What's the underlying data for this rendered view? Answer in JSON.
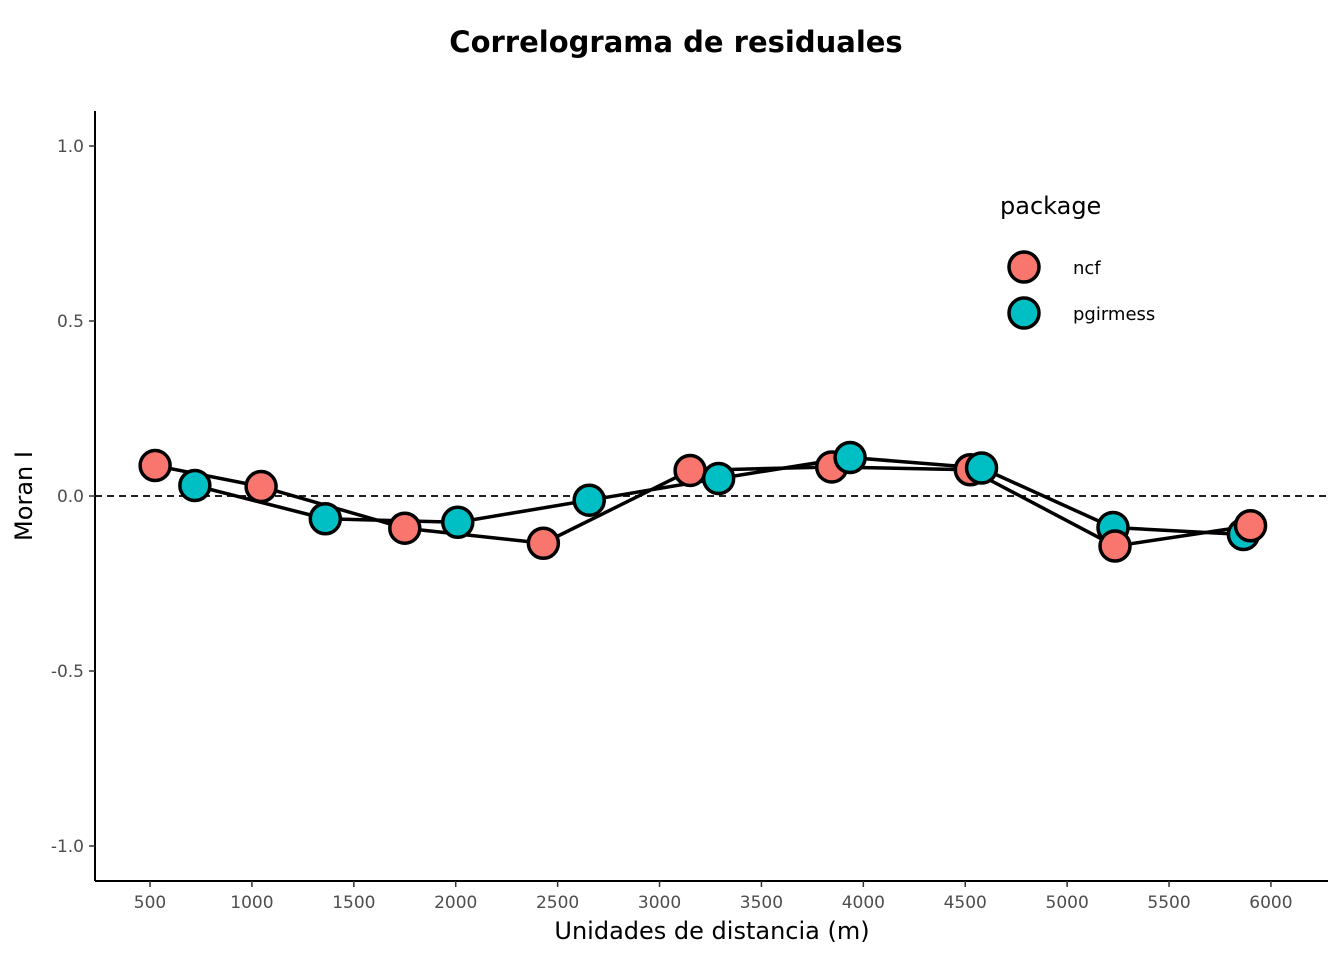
{
  "chart_data": {
    "type": "line",
    "title": "Correlograma de residuales",
    "xlabel": "Unidades de distancia (m)",
    "ylabel": "Moran I",
    "xlim": [
      230,
      6280
    ],
    "ylim": [
      -1.1,
      1.1
    ],
    "x_ticks": [
      500,
      1000,
      1500,
      2000,
      2500,
      3000,
      3500,
      4000,
      4500,
      5000,
      5500,
      6000
    ],
    "y_ticks": [
      1.0,
      0.5,
      0.0,
      -0.5,
      -1.0
    ],
    "y_tick_labels": [
      "1.0",
      "0.5",
      "0.0",
      "-0.5",
      "-1.0"
    ],
    "reference_line": {
      "y": 0,
      "style": "dashed"
    },
    "grid": false,
    "legend": {
      "title": "package",
      "position": "top-right"
    },
    "series": [
      {
        "name": "ncf",
        "color": "#F8766D",
        "points": [
          {
            "x": 525,
            "y": 0.087
          },
          {
            "x": 1045,
            "y": 0.027
          },
          {
            "x": 1750,
            "y": -0.092
          },
          {
            "x": 2430,
            "y": -0.135
          },
          {
            "x": 3150,
            "y": 0.073
          },
          {
            "x": 3845,
            "y": 0.083
          },
          {
            "x": 4525,
            "y": 0.075
          },
          {
            "x": 5235,
            "y": -0.143
          },
          {
            "x": 5900,
            "y": -0.085
          }
        ]
      },
      {
        "name": "pgirmess",
        "color": "#00BFC4",
        "points": [
          {
            "x": 720,
            "y": 0.03
          },
          {
            "x": 1360,
            "y": -0.065
          },
          {
            "x": 2010,
            "y": -0.075
          },
          {
            "x": 2655,
            "y": -0.012
          },
          {
            "x": 3290,
            "y": 0.05
          },
          {
            "x": 3935,
            "y": 0.11
          },
          {
            "x": 4580,
            "y": 0.08
          },
          {
            "x": 5225,
            "y": -0.09
          },
          {
            "x": 5865,
            "y": -0.11
          }
        ]
      }
    ]
  }
}
